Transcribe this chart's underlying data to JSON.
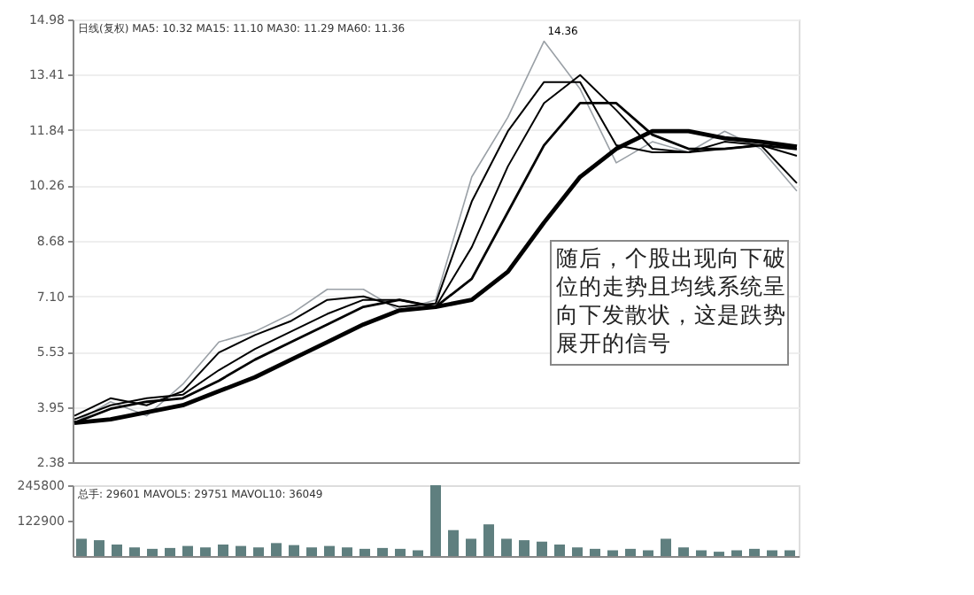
{
  "chart_data": [
    {
      "type": "line",
      "ylim": [
        2.38,
        14.98
      ],
      "yticks": [
        2.38,
        3.95,
        5.53,
        {
          "value": 7.1,
          "label": "7.10"
        },
        8.68,
        10.26,
        11.84,
        13.41,
        14.98
      ],
      "tick_labels": "y",
      "grid": "y",
      "categories": [
        null,
        null,
        null,
        null,
        null,
        null,
        null,
        null,
        null,
        null,
        null,
        null,
        null,
        null,
        null,
        null,
        null,
        null,
        null,
        null,
        null
      ],
      "series": [
        {
          "color": "#9aa0a6",
          "values": [
            3.5,
            4.1,
            3.7,
            4.6,
            5.8,
            6.1,
            6.6,
            7.3,
            7.3,
            6.7,
            7.0,
            10.5,
            12.2,
            14.36,
            13.0,
            10.9,
            11.5,
            11.2,
            11.8,
            11.3,
            10.1
          ]
        },
        {
          "color": "#000000",
          "values": [
            3.7,
            4.2,
            4.0,
            4.4,
            5.5,
            6.0,
            6.4,
            7.0,
            7.1,
            6.8,
            6.9,
            9.8,
            11.8,
            13.2,
            13.2,
            11.4,
            11.2,
            11.2,
            11.5,
            11.4,
            10.32
          ]
        },
        {
          "color": "#000000",
          "values": [
            3.6,
            4.0,
            4.2,
            4.3,
            5.0,
            5.6,
            6.1,
            6.6,
            7.0,
            7.0,
            6.8,
            8.5,
            10.8,
            12.6,
            13.4,
            12.4,
            11.3,
            11.2,
            11.3,
            11.4,
            11.1
          ]
        },
        {
          "color": "#000000",
          "values": [
            3.5,
            3.9,
            4.1,
            4.2,
            4.7,
            5.3,
            5.8,
            6.3,
            6.8,
            7.0,
            6.8,
            7.6,
            9.5,
            11.4,
            12.6,
            12.6,
            11.7,
            11.3,
            11.3,
            11.4,
            11.29
          ]
        },
        {
          "color": "#000000",
          "values": [
            3.5,
            3.6,
            3.8,
            4.0,
            4.4,
            4.8,
            5.3,
            5.8,
            6.3,
            6.7,
            6.8,
            7.0,
            7.8,
            9.2,
            10.5,
            11.3,
            11.8,
            11.8,
            11.6,
            11.5,
            11.36
          ]
        }
      ],
      "annotations": [
        "日线(复权) MA5: 10.32 MA15: 11.10 MA30: 11.29 MA60: 11.36",
        "14.36",
        "随后，个股出现向下破位的走势且均线系统呈向下发散状，这是跌势展开的信号"
      ]
    },
    {
      "type": "bar",
      "ylim": [
        0,
        245800
      ],
      "yticks": [
        122900,
        245800
      ],
      "tick_labels": "y",
      "color": "#5f7f7f",
      "categories": [
        null,
        null,
        null,
        null,
        null,
        null,
        null,
        null,
        null,
        null,
        null,
        null,
        null,
        null,
        null,
        null,
        null,
        null,
        null,
        null,
        null,
        null,
        null,
        null,
        null,
        null,
        null,
        null,
        null,
        null,
        null,
        null,
        null,
        null,
        null,
        null,
        null,
        null,
        null,
        null,
        null
      ],
      "values": [
        60000,
        55000,
        40000,
        30000,
        25000,
        28000,
        35000,
        30000,
        40000,
        35000,
        30000,
        45000,
        38000,
        30000,
        35000,
        30000,
        25000,
        28000,
        25000,
        20000,
        245800,
        90000,
        60000,
        110000,
        60000,
        55000,
        50000,
        40000,
        30000,
        25000,
        20000,
        25000,
        20000,
        60000,
        30000,
        20000,
        15000,
        20000,
        25000,
        20000,
        20000
      ],
      "annotations": [
        "总手: 29601 MAVOL5: 29751 MAVOL10: 36049"
      ]
    }
  ]
}
